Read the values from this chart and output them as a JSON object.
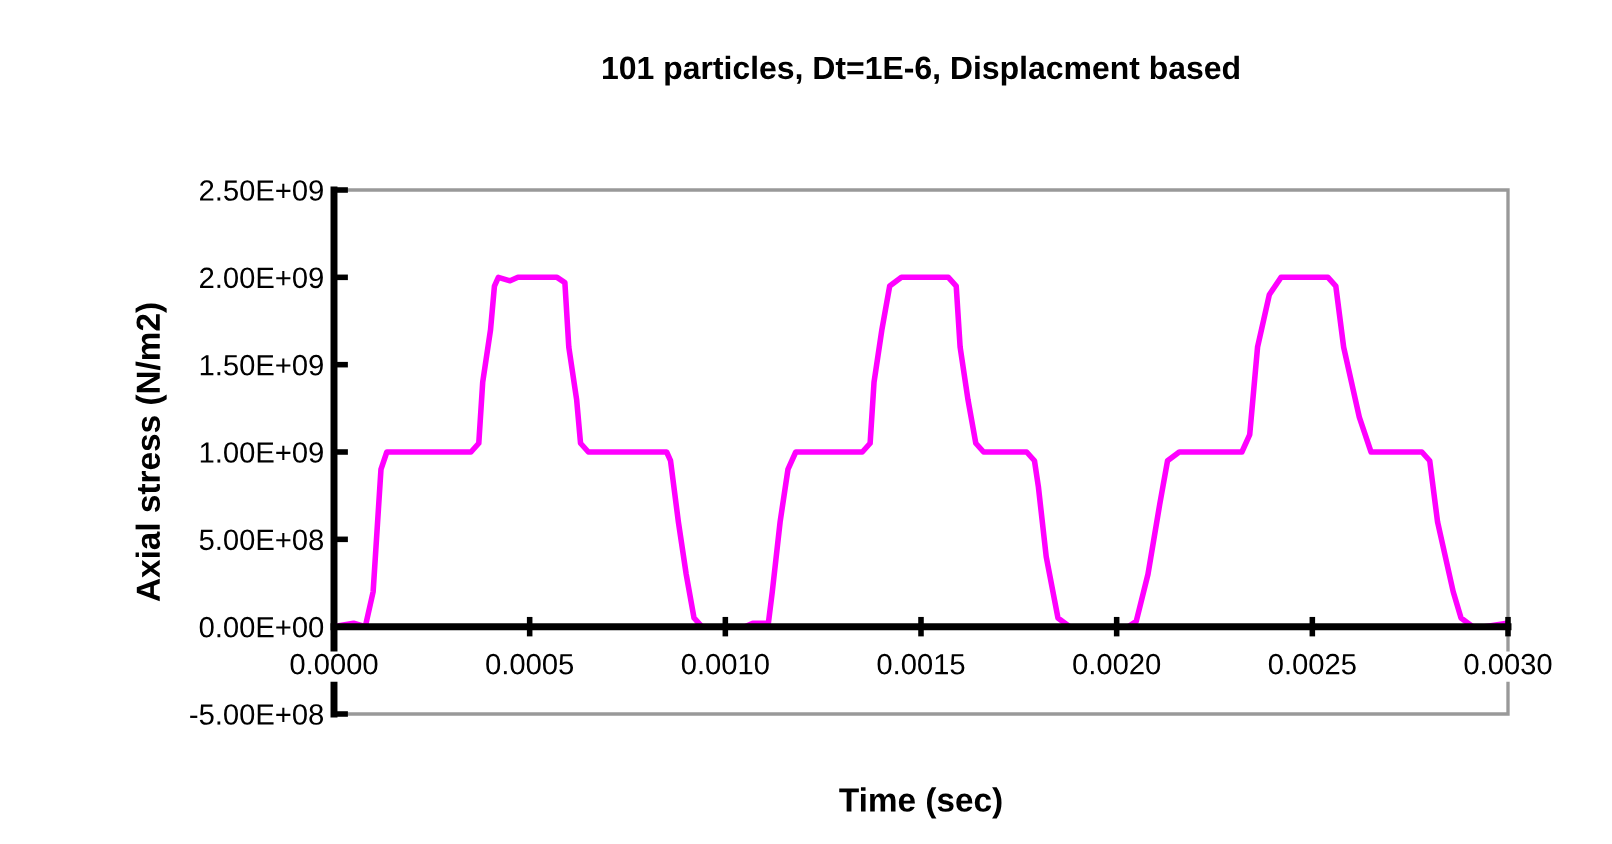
{
  "chart_data": {
    "type": "line",
    "title": "101 particles, Dt=1E-6, Displacment based",
    "xlabel": "Time (sec)",
    "ylabel": "Axial stress (N/m2)",
    "xlim": [
      0,
      0.003
    ],
    "ylim": [
      -500000000.0,
      2500000000.0
    ],
    "xticks": [
      {
        "value": 0,
        "label": "0.0000"
      },
      {
        "value": 0.0005,
        "label": "0.0005"
      },
      {
        "value": 0.001,
        "label": "0.0010"
      },
      {
        "value": 0.0015,
        "label": "0.0015"
      },
      {
        "value": 0.002,
        "label": "0.0020"
      },
      {
        "value": 0.0025,
        "label": "0.0025"
      },
      {
        "value": 0.003,
        "label": "0.0030"
      }
    ],
    "yticks": [
      {
        "value": -500000000.0,
        "label": "-5.00E+08"
      },
      {
        "value": 0,
        "label": "0.00E+00"
      },
      {
        "value": 500000000.0,
        "label": "5.00E+08"
      },
      {
        "value": 1000000000.0,
        "label": "1.00E+09"
      },
      {
        "value": 1500000000.0,
        "label": "1.50E+09"
      },
      {
        "value": 2000000000.0,
        "label": "2.00E+09"
      },
      {
        "value": 2500000000.0,
        "label": "2.50E+09"
      }
    ],
    "grid": false,
    "legend": false,
    "marker": "none",
    "line_style": "solid",
    "series": [
      {
        "color": "#ff00ff",
        "x": [
          0,
          5e-05,
          8e-05,
          0.0001,
          0.00012,
          0.000135,
          0.00035,
          0.00037,
          0.00038,
          0.0004,
          0.00041,
          0.00042,
          0.00045,
          0.00047,
          0.00057,
          0.00059,
          0.0006,
          0.00062,
          0.00063,
          0.00065,
          0.0007,
          0.00085,
          0.00086,
          0.00088,
          0.0009,
          0.00092,
          0.00094,
          0.00105,
          0.00107,
          0.00111,
          0.00112,
          0.00114,
          0.00116,
          0.00118,
          0.00135,
          0.00137,
          0.00138,
          0.0014,
          0.00142,
          0.00145,
          0.00157,
          0.00159,
          0.0016,
          0.00162,
          0.00164,
          0.00166,
          0.00177,
          0.00179,
          0.0018,
          0.00182,
          0.00185,
          0.00188,
          0.0019,
          0.00195,
          0.00203,
          0.00205,
          0.00208,
          0.00211,
          0.00213,
          0.00216,
          0.00232,
          0.00234,
          0.00236,
          0.00239,
          0.00242,
          0.00244,
          0.00254,
          0.00256,
          0.00258,
          0.00262,
          0.00265,
          0.00267,
          0.00278,
          0.0028,
          0.00282,
          0.00286,
          0.00288,
          0.00291,
          0.00294,
          0.003
        ],
        "values": [
          0,
          20000000.0,
          0,
          200000000.0,
          900000000.0,
          1000000000.0,
          1000000000.0,
          1050000000.0,
          1400000000.0,
          1700000000.0,
          1950000000.0,
          2000000000.0,
          1980000000.0,
          2000000000.0,
          2000000000.0,
          1970000000.0,
          1600000000.0,
          1300000000.0,
          1050000000.0,
          1000000000.0,
          1000000000.0,
          1000000000.0,
          950000000.0,
          600000000.0,
          300000000.0,
          50000000.0,
          0,
          0,
          20000000.0,
          20000000.0,
          200000000.0,
          600000000.0,
          900000000.0,
          1000000000.0,
          1000000000.0,
          1050000000.0,
          1400000000.0,
          1700000000.0,
          1950000000.0,
          2000000000.0,
          2000000000.0,
          1950000000.0,
          1600000000.0,
          1300000000.0,
          1050000000.0,
          1000000000.0,
          1000000000.0,
          950000000.0,
          800000000.0,
          400000000.0,
          50000000.0,
          0,
          0,
          0,
          0,
          30000000.0,
          300000000.0,
          700000000.0,
          950000000.0,
          1000000000.0,
          1000000000.0,
          1100000000.0,
          1600000000.0,
          1900000000.0,
          2000000000.0,
          2000000000.0,
          2000000000.0,
          1950000000.0,
          1600000000.0,
          1200000000.0,
          1000000000.0,
          1000000000.0,
          1000000000.0,
          950000000.0,
          600000000.0,
          200000000.0,
          50000000.0,
          0,
          0,
          20000000.0
        ]
      }
    ]
  }
}
